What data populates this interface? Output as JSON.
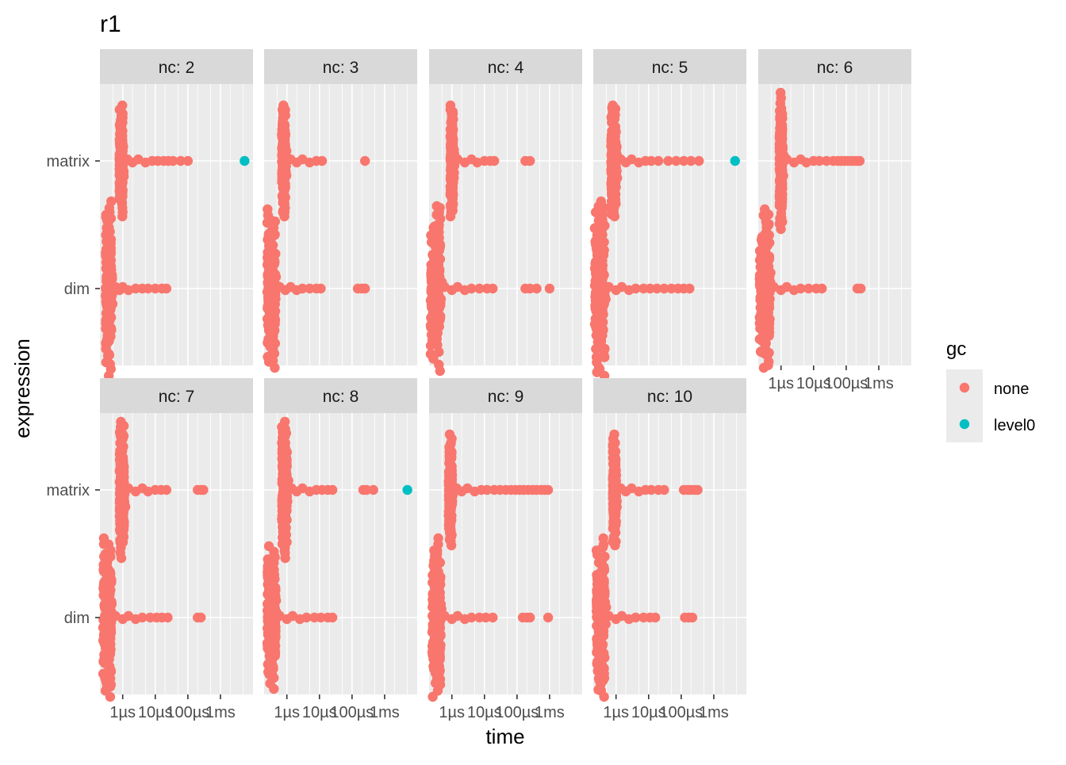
{
  "chart_data": {
    "type": "scatter",
    "title": "r1",
    "xlabel": "time",
    "ylabel": "expression",
    "x_scale": "log10",
    "x_unit": "seconds",
    "xlim": [
      2e-07,
      0.01
    ],
    "x_ticks": [
      {
        "value": 1e-06,
        "label": "1µs"
      },
      {
        "value": 1e-05,
        "label": "10µs"
      },
      {
        "value": 0.0001,
        "label": "100µs"
      },
      {
        "value": 0.001,
        "label": "1ms"
      }
    ],
    "categories": [
      "dim",
      "matrix"
    ],
    "legend": {
      "title": "gc",
      "position": "right",
      "entries": [
        {
          "label": "none",
          "color": "#F8766D"
        },
        {
          "label": "level0",
          "color": "#00BFC4"
        }
      ]
    },
    "facets": [
      {
        "label": "nc: 2",
        "matrix": {
          "core": [
            8e-07,
            1e-06
          ],
          "spread": 0.00035,
          "tail": [
            1.4e-06,
            2e-06,
            3e-06,
            5e-06,
            8e-06,
            1.2e-05,
            1.8e-05,
            2.5e-05,
            3.5e-05,
            6e-05,
            0.0001
          ],
          "level0": [
            0.0055
          ]
        },
        "dim": {
          "core": [
            3e-07,
            4.5e-07
          ],
          "spread": 0.00055,
          "tail": [
            6e-07,
            8e-07,
            1e-06,
            1.5e-06,
            2.5e-06,
            4e-06,
            6e-06,
            1e-05,
            1.6e-05,
            2.2e-05
          ],
          "level0": []
        }
      },
      {
        "label": "nc: 3",
        "matrix": {
          "core": [
            7e-07,
            9e-07
          ],
          "spread": 0.00035,
          "tail": [
            1.3e-06,
            2e-06,
            3e-06,
            5e-06,
            8e-06,
            1.2e-05,
            0.00025
          ],
          "level0": []
        },
        "dim": {
          "core": [
            2.5e-07,
            4.5e-07
          ],
          "spread": 0.0005,
          "tail": [
            6e-07,
            9e-07,
            1.3e-06,
            2e-06,
            3e-06,
            5e-06,
            8e-06,
            1.1e-05,
            0.00015,
            0.0002,
            0.00025
          ],
          "level0": []
        }
      },
      {
        "label": "nc: 4",
        "matrix": {
          "core": [
            9e-07,
            1.1e-06
          ],
          "spread": 0.00035,
          "tail": [
            1.5e-06,
            2.5e-06,
            4e-06,
            6e-06,
            1e-05,
            1.5e-05,
            2e-05,
            0.00018,
            0.00025
          ],
          "level0": []
        },
        "dim": {
          "core": [
            2.2e-07,
            4.5e-07
          ],
          "spread": 0.00052,
          "tail": [
            6e-07,
            1e-06,
            1.5e-06,
            2.5e-06,
            4e-06,
            7e-06,
            1.2e-05,
            1.8e-05,
            0.00018,
            0.00025,
            0.0004,
            0.001
          ],
          "level0": []
        }
      },
      {
        "label": "nc: 5",
        "matrix": {
          "core": [
            7e-07,
            1e-06
          ],
          "spread": 0.00035,
          "tail": [
            1.4e-06,
            2e-06,
            3e-06,
            5e-06,
            8e-06,
            1.2e-05,
            2e-05,
            4e-05,
            7e-05,
            0.00012,
            0.0002,
            0.00035
          ],
          "level0": [
            0.0045
          ]
        },
        "dim": {
          "core": [
            2.2e-07,
            4.5e-07
          ],
          "spread": 0.00055,
          "tail": [
            6e-07,
            1e-06,
            1.5e-06,
            2.5e-06,
            4e-06,
            7e-06,
            1.1e-05,
            1.8e-05,
            3e-05,
            5e-05,
            8e-05,
            0.00012,
            0.00018
          ],
          "level0": []
        }
      },
      {
        "label": "nc: 6",
        "matrix": {
          "core": [
            9e-07,
            1.1e-06
          ],
          "spread": 0.00043,
          "tail": [
            1.5e-06,
            2.5e-06,
            4e-06,
            6e-06,
            1e-05,
            1.5e-05,
            2.5e-05,
            4e-05,
            5.5e-05,
            7e-05,
            9e-05,
            0.00011,
            0.00014,
            0.00018,
            0.00022,
            0.00026
          ],
          "level0": []
        },
        "dim": {
          "core": [
            2.2e-07,
            4.5e-07
          ],
          "spread": 0.0005,
          "tail": [
            6e-07,
            1e-06,
            1.5e-06,
            2.5e-06,
            4e-06,
            7e-06,
            1.2e-05,
            1.8e-05,
            0.00022,
            0.00028
          ],
          "level0": []
        }
      },
      {
        "label": "nc: 7",
        "matrix": {
          "core": [
            8e-07,
            1.1e-06
          ],
          "spread": 0.00043,
          "tail": [
            1.5e-06,
            2.5e-06,
            4e-06,
            6e-06,
            1e-05,
            1.5e-05,
            2.2e-05,
            0.0002,
            0.00025,
            0.0003
          ],
          "level0": []
        },
        "dim": {
          "core": [
            2.5e-07,
            4.5e-07
          ],
          "spread": 0.0005,
          "tail": [
            6e-07,
            1e-06,
            1.5e-06,
            2.5e-06,
            4e-06,
            7e-06,
            1.1e-05,
            1.6e-05,
            2.4e-05,
            0.0002,
            0.00025
          ],
          "level0": []
        }
      },
      {
        "label": "nc: 8",
        "matrix": {
          "core": [
            7e-07,
            1e-06
          ],
          "spread": 0.00043,
          "tail": [
            1.4e-06,
            2e-06,
            3e-06,
            5e-06,
            8e-06,
            1.2e-05,
            1.8e-05,
            2.5e-05,
            0.00022,
            0.00028,
            0.00045
          ],
          "level0": [
            0.005
          ]
        },
        "dim": {
          "core": [
            2.5e-07,
            4.5e-07
          ],
          "spread": 0.00045,
          "tail": [
            6e-07,
            1e-06,
            1.5e-06,
            2.5e-06,
            4e-06,
            7e-06,
            1.1e-05,
            1.8e-05,
            2.5e-05
          ],
          "level0": []
        }
      },
      {
        "label": "nc: 9",
        "matrix": {
          "core": [
            8e-07,
            1e-06
          ],
          "spread": 0.00035,
          "tail": [
            1.4e-06,
            2e-06,
            3e-06,
            5e-06,
            8e-06,
            1.2e-05,
            2e-05,
            3e-05,
            4.5e-05,
            6.5e-05,
            9e-05,
            0.00012,
            0.00016,
            0.00022,
            0.0003,
            0.0004,
            0.00055,
            0.0007,
            0.0009
          ],
          "level0": []
        },
        "dim": {
          "core": [
            2.5e-07,
            4.5e-07
          ],
          "spread": 0.0005,
          "tail": [
            6e-07,
            1e-06,
            1.5e-06,
            2.5e-06,
            4e-06,
            7e-06,
            1.1e-05,
            1.8e-05,
            0.00015,
            0.0002,
            0.00025,
            0.0009
          ],
          "level0": []
        }
      },
      {
        "label": "nc: 10",
        "matrix": {
          "core": [
            8e-07,
            1e-06
          ],
          "spread": 0.00035,
          "tail": [
            1.4e-06,
            2e-06,
            3e-06,
            5e-06,
            8e-06,
            1.2e-05,
            2e-05,
            3e-05,
            0.00012,
            0.00016,
            0.0002,
            0.00026,
            0.00032
          ],
          "level0": []
        },
        "dim": {
          "core": [
            2.5e-07,
            4.5e-07
          ],
          "spread": 0.0005,
          "tail": [
            6e-07,
            1e-06,
            1.5e-06,
            2.5e-06,
            4e-06,
            7e-06,
            1.1e-05,
            1.6e-05,
            0.00013,
            0.00017,
            0.00022
          ],
          "level0": []
        }
      }
    ]
  }
}
